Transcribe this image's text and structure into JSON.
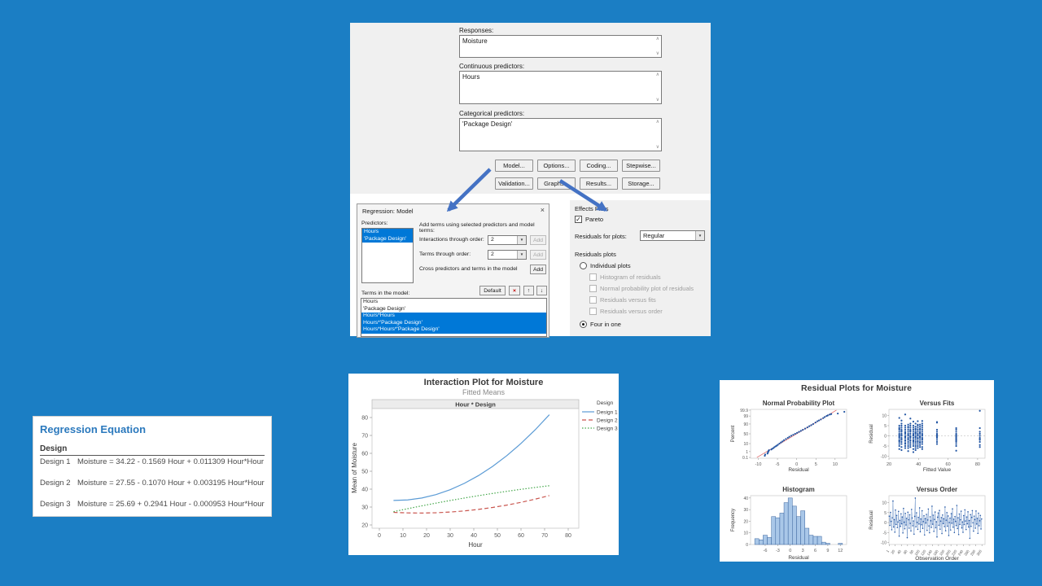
{
  "colors": {
    "background": "#1b7ec4",
    "selection": "#0078d7",
    "arrow": "#4472c4",
    "accent_title": "#2b79bd",
    "line1": "#5b9bd5",
    "line2": "#c9554e",
    "line3": "#44a74a",
    "dot": "#2457a4",
    "hist_fill": "#a9c7e8",
    "hist_stroke": "#39649e",
    "npp_line": "#e06666"
  },
  "main_dialog": {
    "fields": [
      {
        "label": "Responses:",
        "value": "Moisture"
      },
      {
        "label": "Continuous predictors:",
        "value": "Hours"
      },
      {
        "label": "Categorical predictors:",
        "value": "'Package Design'"
      }
    ],
    "buttons_row1": [
      "Model...",
      "Options...",
      "Coding...",
      "Stepwise..."
    ],
    "buttons_row2": [
      "Validation...",
      "Graphs...",
      "Results...",
      "Storage..."
    ]
  },
  "model_dialog": {
    "title": "Regression: Model",
    "close_glyph": "×",
    "predictors_label": "Predictors:",
    "predictors": [
      {
        "text": "Hours",
        "selected": true
      },
      {
        "text": "'Package Design'",
        "selected": true
      }
    ],
    "add_terms_label": "Add terms using selected predictors and model terms:",
    "interactions_label": "Interactions through order:",
    "interactions_value": "2",
    "terms_order_label": "Terms through order:",
    "terms_order_value": "2",
    "cross_label": "Cross predictors and terms in the model",
    "add_label": "Add",
    "terms_in_model_label": "Terms in the model:",
    "default_label": "Default",
    "remove_glyph": "×",
    "up_glyph": "↑",
    "down_glyph": "↓",
    "terms_in_model": [
      {
        "text": "Hours",
        "selected": false
      },
      {
        "text": "'Package Design'",
        "selected": false
      },
      {
        "text": "Hours*Hours",
        "selected": true
      },
      {
        "text": "Hours*'Package Design'",
        "selected": true
      },
      {
        "text": "Hours*Hours*'Package Design'",
        "selected": true
      }
    ]
  },
  "effects_panel": {
    "title": "Effects Plots",
    "pareto_label": "Pareto",
    "pareto_checked": true,
    "residuals_for_label": "Residuals for plots:",
    "residuals_for_value": "Regular",
    "residuals_plots_label": "Residuals plots",
    "individual_label": "Individual plots",
    "individual_selected": false,
    "individual_options": [
      "Histogram of residuals",
      "Normal probability plot of residuals",
      "Residuals versus fits",
      "Residuals versus order"
    ],
    "four_in_one_label": "Four in one",
    "four_in_one_selected": true
  },
  "regression_equation": {
    "title": "Regression Equation",
    "header": "Design",
    "rows": [
      {
        "design": "Design 1",
        "equation": "Moisture = 34.22 - 0.1569 Hour + 0.011309 Hour*Hour"
      },
      {
        "design": "Design 2",
        "equation": "Moisture = 27.55 - 0.1070 Hour + 0.003195 Hour*Hour"
      },
      {
        "design": "Design 3",
        "equation": "Moisture = 25.69 + 0.2941 Hour - 0.000953 Hour*Hour"
      }
    ]
  },
  "chart_data": [
    {
      "type": "line",
      "title": "Interaction Plot for Moisture",
      "subtitle": "Fitted Means",
      "panel_label": "Hour * Design",
      "xlabel": "Hour",
      "ylabel": "Mean of Moisture",
      "xlim": [
        0,
        80
      ],
      "ylim": [
        20,
        85
      ],
      "xticks": [
        0,
        10,
        20,
        30,
        40,
        50,
        60,
        70,
        80
      ],
      "yticks": [
        20,
        30,
        40,
        50,
        60,
        70,
        80
      ],
      "legend_title": "Design",
      "x": [
        6,
        12,
        18,
        24,
        30,
        36,
        42,
        48,
        54,
        60,
        66,
        72
      ],
      "series": [
        {
          "name": "Design 1",
          "dash": "solid",
          "values": [
            33.69,
            33.97,
            35.06,
            36.97,
            39.69,
            43.23,
            47.58,
            52.74,
            58.72,
            65.52,
            73.13,
            81.55
          ]
        },
        {
          "name": "Design 2",
          "dash": "dashed",
          "values": [
            27.02,
            26.73,
            26.66,
            26.82,
            27.22,
            27.84,
            28.69,
            29.78,
            31.09,
            32.63,
            34.41,
            36.41
          ]
        },
        {
          "name": "Design 3",
          "dash": "dotted",
          "values": [
            27.42,
            29.08,
            30.68,
            32.2,
            33.66,
            35.04,
            36.36,
            37.61,
            38.79,
            39.91,
            40.95,
            41.92
          ]
        }
      ]
    },
    {
      "type": "multi",
      "title": "Residual Plots for Moisture",
      "plots": [
        {
          "type": "scatter",
          "title": "Normal Probability Plot",
          "xlabel": "Residual",
          "ylabel": "Percent",
          "xticks": [
            -10,
            -5,
            0,
            5,
            10
          ],
          "yticks": [
            0.1,
            1,
            10,
            50,
            90,
            99,
            99.9
          ],
          "fit_line": {
            "from": [
              -10.35,
              0.1
            ],
            "to": [
              10.35,
              99.9
            ]
          },
          "points": [
            [
              -8.3,
              0.2
            ],
            [
              -8.2,
              0.33
            ],
            [
              -7.6,
              0.5
            ],
            [
              -7.5,
              0.7
            ],
            [
              -7.4,
              1.0
            ],
            [
              -7.3,
              1.3
            ],
            [
              -7.2,
              1.6
            ],
            [
              -6.6,
              2.0
            ],
            [
              -6.4,
              2.5
            ],
            [
              -6.1,
              3.0
            ],
            [
              -5.8,
              4.0
            ],
            [
              -5.5,
              5.0
            ],
            [
              -5.2,
              6.0
            ],
            [
              -4.9,
              7.5
            ],
            [
              -4.5,
              10
            ],
            [
              -4.1,
              13
            ],
            [
              -3.7,
              16
            ],
            [
              -3.3,
              20
            ],
            [
              -2.8,
              25
            ],
            [
              -2.3,
              30
            ],
            [
              -1.9,
              35
            ],
            [
              -1.4,
              40
            ],
            [
              -0.9,
              45
            ],
            [
              -0.4,
              50
            ],
            [
              0.1,
              55
            ],
            [
              0.6,
              60
            ],
            [
              1.1,
              65
            ],
            [
              1.6,
              70
            ],
            [
              2.2,
              75
            ],
            [
              2.8,
              80
            ],
            [
              3.3,
              84
            ],
            [
              3.8,
              87
            ],
            [
              4.3,
              90
            ],
            [
              4.9,
              93
            ],
            [
              5.4,
              95
            ],
            [
              5.8,
              96
            ],
            [
              6.3,
              97
            ],
            [
              6.9,
              98
            ],
            [
              7.3,
              98.6
            ],
            [
              7.8,
              99
            ],
            [
              8.1,
              99.2
            ],
            [
              8.6,
              99.4
            ],
            [
              9.0,
              99.5
            ],
            [
              10.7,
              99.6
            ],
            [
              12.4,
              99.8
            ]
          ]
        },
        {
          "type": "scatter",
          "title": "Versus Fits",
          "xlabel": "Fitted Value",
          "ylabel": "Residual",
          "xticks": [
            20,
            40,
            60,
            80
          ],
          "yticks": [
            -10,
            -5,
            0,
            5,
            10
          ],
          "zero_line": true,
          "strips": [
            {
              "fit": 27,
              "res": [
                -6.5,
                -5,
                -4,
                -3,
                -2.5,
                -2,
                -1,
                -0.5,
                0,
                0.5,
                1,
                2,
                3,
                3.5,
                4,
                5,
                8.8
              ]
            },
            {
              "fit": 28.5,
              "res": [
                -7,
                -5.5,
                -4,
                -3,
                -2,
                -1.5,
                -1,
                0,
                0.5,
                1,
                2,
                2.5,
                3,
                4,
                5,
                6,
                7.5
              ]
            },
            {
              "fit": 31,
              "res": [
                -6,
                -5,
                -4,
                -3.5,
                -2.5,
                -2,
                -1,
                -0.5,
                0,
                1,
                1.5,
                2,
                3,
                4,
                5,
                10.5
              ]
            },
            {
              "fit": 33,
              "res": [
                -7.5,
                -6,
                -5,
                -4,
                -3,
                -2,
                -1.5,
                -1,
                0,
                0.5,
                1,
                2,
                3,
                4,
                4.5,
                5.5
              ]
            },
            {
              "fit": 34.5,
              "res": [
                -5.5,
                -4.5,
                -3.5,
                -2.5,
                -2,
                -1,
                -0.5,
                0,
                1,
                2,
                2.5,
                3,
                4,
                5,
                6,
                8.5
              ]
            },
            {
              "fit": 36.5,
              "res": [
                -8,
                -6.5,
                -5,
                -4,
                -3,
                -2.5,
                -2,
                -1,
                0,
                0.5,
                1,
                2,
                3,
                4,
                5,
                7
              ]
            },
            {
              "fit": 38,
              "res": [
                -7,
                -6,
                -5,
                -4,
                -3,
                -2,
                -1,
                -0.5,
                0,
                1,
                1.5,
                2,
                3,
                3.5,
                4.5,
                6
              ]
            },
            {
              "fit": 39.5,
              "res": [
                -6,
                -5,
                -4,
                -3,
                -2.5,
                -1.5,
                -1,
                0,
                0.5,
                1,
                2,
                3,
                4,
                5,
                5.5,
                7.2
              ]
            },
            {
              "fit": 41,
              "res": [
                -5.5,
                -4.5,
                -3.5,
                -3,
                -2,
                -1,
                -0.5,
                0,
                1,
                1.5,
                2,
                3,
                3.5,
                4.5,
                5.5
              ]
            },
            {
              "fit": 42.5,
              "res": [
                -6.5,
                -5.5,
                -4,
                -3,
                -2,
                -1.5,
                -1,
                0,
                0.5,
                1,
                2,
                3,
                4,
                5,
                6,
                7.3
              ]
            },
            {
              "fit": 52.5,
              "res": [
                -4,
                -3,
                -2,
                -1,
                -0.5,
                0,
                0.5,
                1,
                2,
                3,
                6.5,
                6.8
              ]
            },
            {
              "fit": 65.5,
              "res": [
                -7.3,
                -5,
                -4,
                -3,
                -2.5,
                -2,
                -1.5,
                -1,
                -0.5,
                0,
                0.5,
                1,
                2,
                3,
                3.8
              ]
            },
            {
              "fit": 81.5,
              "res": [
                -5.5,
                -4.5,
                -3,
                -2,
                -1.5,
                -1,
                0,
                1,
                2,
                3.8,
                12.3
              ]
            }
          ]
        },
        {
          "type": "bar",
          "title": "Histogram",
          "xlabel": "Residual",
          "ylabel": "Frequency",
          "xticks": [
            -6,
            -3,
            0,
            3,
            6,
            9,
            12
          ],
          "yticks": [
            0,
            10,
            20,
            30,
            40
          ],
          "bin_centers": [
            -8,
            -7,
            -6,
            -5,
            -4,
            -3,
            -2,
            -1,
            0,
            1,
            2,
            3,
            4,
            5,
            6,
            7,
            8,
            9,
            10,
            11,
            12
          ],
          "values": [
            5,
            4,
            8,
            6,
            24,
            23,
            27,
            36,
            40,
            33,
            24,
            29,
            14,
            8,
            7,
            7,
            2,
            1,
            0,
            0,
            1
          ]
        },
        {
          "type": "line-scatter",
          "title": "Versus Order",
          "xlabel": "Observation Order",
          "ylabel": "Residual",
          "xticks": [
            1,
            20,
            40,
            60,
            80,
            100,
            120,
            140,
            160,
            180,
            200,
            220,
            240,
            260,
            280,
            300
          ],
          "yticks": [
            -10,
            -5,
            0,
            5,
            10
          ],
          "order_step": 2,
          "values": [
            3.2,
            -1.4,
            5.1,
            0.6,
            -3.6,
            2.4,
            10.8,
            -2.2,
            1.5,
            -4.8,
            6.3,
            -0.9,
            3.6,
            -2.5,
            0.3,
            5.6,
            -6.8,
            1.1,
            -1.9,
            4.4,
            -0.6,
            2.8,
            -5.2,
            7.1,
            0.2,
            -3.1,
            4.6,
            -1.2,
            2.1,
            -7.6,
            5.2,
            1.4,
            -2.8,
            3.9,
            -0.4,
            -4.2,
            6.6,
            2.3,
            -1.6,
            0.8,
            -5.8,
            3.1,
            12.3,
            -2.1,
            4.9,
            0.1,
            -3.4,
            2.6,
            -0.7,
            7.4,
            -4.6,
            1.8,
            -1.1,
            5.9,
            -2.9,
            0.5,
            3.4,
            -6.2,
            2.0,
            -0.2,
            4.1,
            -3.9,
            1.3,
            6.8,
            -1.7,
            -5.1,
            2.9,
            0.9,
            -2.4,
            8.2,
            -0.8,
            3.7,
            -4.4,
            1.6,
            5.3,
            -2.6,
            0.4,
            -7.2,
            2.7,
            4.8,
            -1.3,
            6.1,
            -3.3,
            0.7,
            2.5,
            -5.5,
            3.8,
            -0.5,
            1.9,
            -2.0,
            7.8,
            -4.1,
            1.2,
            5.0,
            -1.8,
            3.3,
            -6.5,
            0.0,
            2.2,
            -3.7,
            4.5,
            -0.3,
            6.9,
            -2.3,
            1.7,
            -5.0,
            3.0,
            0.6,
            -1.5,
            8.6,
            -3.0,
            2.4,
            -6.0,
            4.3,
            -0.9,
            1.4,
            5.7,
            -2.7,
            0.3,
            -4.9,
            3.5,
            -1.0,
            6.4,
            0.8,
            -3.5,
            2.8,
            -0.6,
            5.4,
            -2.2,
            1.0,
            -7.9,
            4.0,
            -1.9,
            2.6,
            6.0,
            -0.1,
            -4.3,
            3.2,
            1.5,
            -2.8,
            5.8,
            -0.7,
            2.1,
            -5.4,
            4.7,
            -1.6,
            0.9,
            3.6,
            -3.2,
            1.8
          ]
        }
      ]
    }
  ]
}
